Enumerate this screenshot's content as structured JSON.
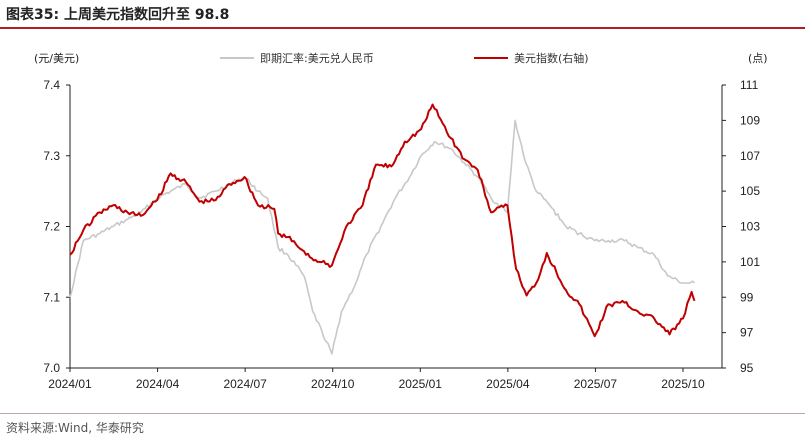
{
  "header": {
    "title": "图表35:  上周美元指数回升至 98.8"
  },
  "footer": {
    "source": "资料来源:Wind, 华泰研究"
  },
  "chart_data": {
    "type": "line",
    "ylabel_left": "(元/美元)",
    "ylabel_right": "(点)",
    "ylim_left": [
      7.0,
      7.4
    ],
    "ylim_right": [
      95,
      111
    ],
    "y_ticks_left": [
      "7.0",
      "7.1",
      "7.2",
      "7.3",
      "7.4"
    ],
    "y_ticks_right": [
      "95",
      "97",
      "99",
      "101",
      "103",
      "105",
      "107",
      "109",
      "111"
    ],
    "x_ticks": [
      "2024/01",
      "2024/04",
      "2024/07",
      "2024/10",
      "2025/01",
      "2025/04",
      "2025/07",
      "2025/10"
    ],
    "grid": false,
    "legend_position": "top-center",
    "series": [
      {
        "name": "即期汇率:美元兑人民币",
        "axis": "left",
        "color": "#c8c8c8",
        "x": [
          "2024-01-01",
          "2024-01-15",
          "2024-02-01",
          "2024-02-15",
          "2024-03-01",
          "2024-03-15",
          "2024-04-01",
          "2024-04-15",
          "2024-05-01",
          "2024-05-15",
          "2024-06-01",
          "2024-06-15",
          "2024-07-01",
          "2024-07-15",
          "2024-07-25",
          "2024-08-05",
          "2024-08-15",
          "2024-09-01",
          "2024-09-10",
          "2024-09-20",
          "2024-09-30",
          "2024-10-10",
          "2024-10-25",
          "2024-11-05",
          "2024-11-20",
          "2024-12-05",
          "2024-12-20",
          "2025-01-01",
          "2025-01-15",
          "2025-02-01",
          "2025-02-15",
          "2025-03-01",
          "2025-03-15",
          "2025-04-01",
          "2025-04-09",
          "2025-04-20",
          "2025-05-01",
          "2025-05-15",
          "2025-06-01",
          "2025-06-15",
          "2025-07-01",
          "2025-07-15",
          "2025-08-01",
          "2025-08-15",
          "2025-09-01",
          "2025-09-15",
          "2025-10-01",
          "2025-10-13"
        ],
        "values": [
          7.1,
          7.18,
          7.19,
          7.2,
          7.21,
          7.22,
          7.24,
          7.25,
          7.26,
          7.24,
          7.25,
          7.26,
          7.27,
          7.25,
          7.24,
          7.17,
          7.16,
          7.13,
          7.08,
          7.05,
          7.02,
          7.08,
          7.12,
          7.16,
          7.2,
          7.24,
          7.27,
          7.3,
          7.32,
          7.31,
          7.29,
          7.27,
          7.24,
          7.22,
          7.35,
          7.29,
          7.25,
          7.23,
          7.2,
          7.19,
          7.18,
          7.18,
          7.18,
          7.17,
          7.16,
          7.13,
          7.12,
          7.12
        ]
      },
      {
        "name": "美元指数(右轴)",
        "axis": "right",
        "color": "#c00000",
        "x": [
          "2024-01-01",
          "2024-01-15",
          "2024-02-01",
          "2024-02-15",
          "2024-03-01",
          "2024-03-15",
          "2024-04-01",
          "2024-04-15",
          "2024-05-01",
          "2024-05-15",
          "2024-06-01",
          "2024-06-15",
          "2024-07-01",
          "2024-07-15",
          "2024-08-01",
          "2024-08-05",
          "2024-08-15",
          "2024-09-01",
          "2024-09-15",
          "2024-09-30",
          "2024-10-15",
          "2024-11-01",
          "2024-11-15",
          "2024-12-01",
          "2024-12-15",
          "2025-01-01",
          "2025-01-13",
          "2025-02-01",
          "2025-02-15",
          "2025-03-01",
          "2025-03-15",
          "2025-04-01",
          "2025-04-10",
          "2025-04-21",
          "2025-05-01",
          "2025-05-12",
          "2025-06-01",
          "2025-06-15",
          "2025-07-01",
          "2025-07-15",
          "2025-08-01",
          "2025-08-15",
          "2025-09-01",
          "2025-09-17",
          "2025-10-01",
          "2025-10-10",
          "2025-10-13"
        ],
        "values": [
          101.4,
          102.8,
          103.8,
          104.2,
          103.8,
          103.6,
          104.5,
          106.0,
          105.5,
          104.4,
          104.5,
          105.4,
          105.8,
          104.2,
          104.0,
          102.6,
          102.4,
          101.6,
          101.0,
          100.8,
          103.0,
          104.2,
          106.5,
          106.4,
          107.8,
          108.5,
          109.9,
          108.0,
          106.8,
          106.2,
          103.8,
          104.2,
          100.6,
          99.1,
          99.8,
          101.5,
          99.4,
          98.6,
          96.8,
          98.6,
          98.7,
          98.2,
          97.8,
          96.9,
          97.8,
          99.3,
          98.8
        ]
      }
    ]
  }
}
